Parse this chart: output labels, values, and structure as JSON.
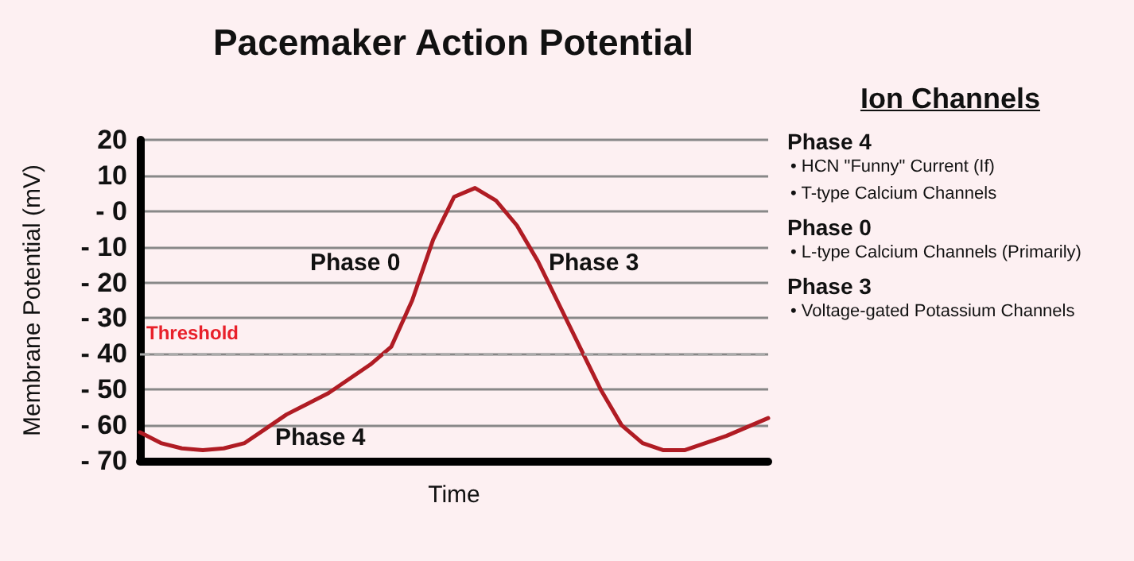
{
  "chart_data": {
    "type": "line",
    "title": "Pacemaker Action Potential",
    "xlabel": "Time",
    "ylabel": "Membrane Potential (mV)",
    "categories": [
      null,
      null,
      null,
      null,
      null,
      null,
      null,
      null,
      null,
      null,
      null,
      null,
      null,
      null,
      null,
      null,
      null,
      null,
      null,
      null,
      null,
      null,
      null,
      null,
      null,
      null,
      null,
      null,
      null,
      null,
      null
    ],
    "series": [
      {
        "color": "#b01c24",
        "values": [
          -62,
          -65,
          -66.5,
          -67,
          -66.5,
          -65,
          -61,
          -57,
          -54,
          -51,
          -47,
          -43,
          -38,
          -25,
          -8,
          4,
          6.5,
          3,
          -4,
          -14,
          -26,
          -38,
          -50,
          -60,
          -65,
          -67,
          -67,
          -65,
          -63,
          -60.5,
          -58
        ]
      }
    ],
    "ylim": [
      -70,
      20
    ],
    "yticks": [
      20,
      10,
      {
        "value": 0,
        "label": "- 0"
      },
      {
        "value": -10,
        "label": "- 10"
      },
      {
        "value": -20,
        "label": "- 20"
      },
      {
        "value": -30,
        "label": "- 30"
      },
      {
        "value": -40,
        "label": "- 40"
      },
      {
        "value": -50,
        "label": "- 50"
      },
      {
        "value": -60,
        "label": "- 60"
      },
      {
        "value": -70,
        "label": "- 70"
      }
    ],
    "grid": "y",
    "marker": "none",
    "line_style": "solid",
    "ref_lines": [
      {
        "axis": "y",
        "value": -40,
        "label": "Threshold",
        "color": "#aaaaaa",
        "line_style": "dashed"
      }
    ],
    "annotations": [
      "Phase 0",
      "Phase 3",
      "Phase 4",
      "Ion Channels",
      "Phase 4",
      "• HCN \"Funny\" Current (If)",
      "• T-type Calcium Channels",
      "Phase 0",
      "• L-type Calcium Channels (Primarily)",
      "Phase 3",
      "• Voltage-gated Potassium Channels"
    ]
  }
}
